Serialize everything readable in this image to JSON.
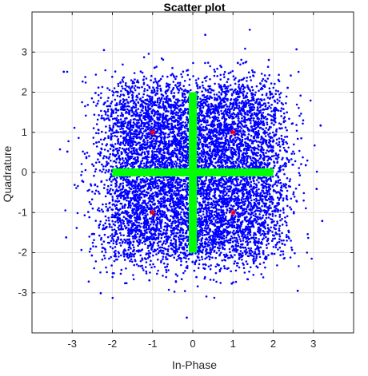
{
  "chart_data": {
    "type": "scatter",
    "title": "Scatter plot",
    "xlabel": "In-Phase",
    "ylabel": "Quadrature",
    "xlim": [
      -4,
      4
    ],
    "ylim": [
      -4,
      4
    ],
    "xticks": [
      -3,
      -2,
      -1,
      0,
      1,
      2,
      3
    ],
    "yticks": [
      -3,
      -2,
      -1,
      0,
      1,
      2,
      3
    ],
    "xtick_labels": [
      "-3",
      "-2",
      "-1",
      "0",
      "1",
      "2",
      "3"
    ],
    "ytick_labels": [
      "-3",
      "-2",
      "-1",
      "0",
      "1",
      "2",
      "3"
    ],
    "grid": true,
    "legend": "none",
    "series": [
      {
        "kind": "received-samples",
        "color": "#0000ff",
        "marker": "dot",
        "distribution": "16 clusters centered at x,y in {-1.5,-0.5,0.5,1.5} with noise std ~0.5",
        "points": [
          [
            -1.52,
            1.41
          ],
          [
            -0.48,
            1.63
          ],
          [
            0.55,
            1.47
          ],
          [
            1.46,
            1.58
          ],
          [
            -1.61,
            0.47
          ],
          [
            -0.52,
            0.41
          ],
          [
            0.43,
            0.58
          ],
          [
            1.57,
            0.44
          ],
          [
            -1.44,
            -0.56
          ],
          [
            -0.57,
            -0.43
          ],
          [
            0.51,
            -0.59
          ],
          [
            1.49,
            -0.48
          ],
          [
            -1.55,
            -1.47
          ],
          [
            -0.46,
            -1.59
          ],
          [
            0.58,
            -1.42
          ],
          [
            1.43,
            -1.56
          ],
          [
            -2.42,
            1.98
          ],
          [
            2.36,
            2.11
          ],
          [
            -2.51,
            -2.07
          ],
          [
            2.47,
            -1.93
          ],
          [
            -3.12,
            0.52
          ],
          [
            3.08,
            -0.41
          ],
          [
            0.31,
            3.43
          ],
          [
            -0.15,
            -3.62
          ],
          [
            -2.21,
            3.05
          ],
          [
            2.58,
            3.07
          ],
          [
            -2.29,
            -3.01
          ],
          [
            2.61,
            -2.95
          ],
          [
            -3.21,
            2.51
          ],
          [
            3.18,
            1.17
          ],
          [
            -3.15,
            -1.62
          ],
          [
            3.22,
            -1.21
          ],
          [
            -0.95,
            2.61
          ],
          [
            1.12,
            2.73
          ],
          [
            -1.08,
            -2.69
          ],
          [
            0.97,
            -2.77
          ],
          [
            -2.75,
            -0.21
          ],
          [
            2.81,
            0.18
          ],
          [
            -0.12,
            2.55
          ],
          [
            0.09,
            -2.61
          ]
        ]
      },
      {
        "kind": "reference-constellation",
        "color": "#ff0000",
        "marker": "star",
        "points": [
          [
            -1,
            1
          ],
          [
            1,
            1
          ],
          [
            -1,
            -1
          ],
          [
            1,
            -1
          ]
        ]
      }
    ],
    "lines": [
      {
        "color": "#00ff00",
        "from": [
          -2,
          0
        ],
        "to": [
          2,
          0
        ]
      },
      {
        "color": "#00ff00",
        "from": [
          0,
          -2
        ],
        "to": [
          0,
          2
        ]
      }
    ],
    "colors": {
      "background": "#ffffff",
      "axes_box": "#262626",
      "grid": "#e0e0e0",
      "samples": "#0000ff",
      "reference": "#ff0000",
      "cross": "#00ff00"
    }
  }
}
